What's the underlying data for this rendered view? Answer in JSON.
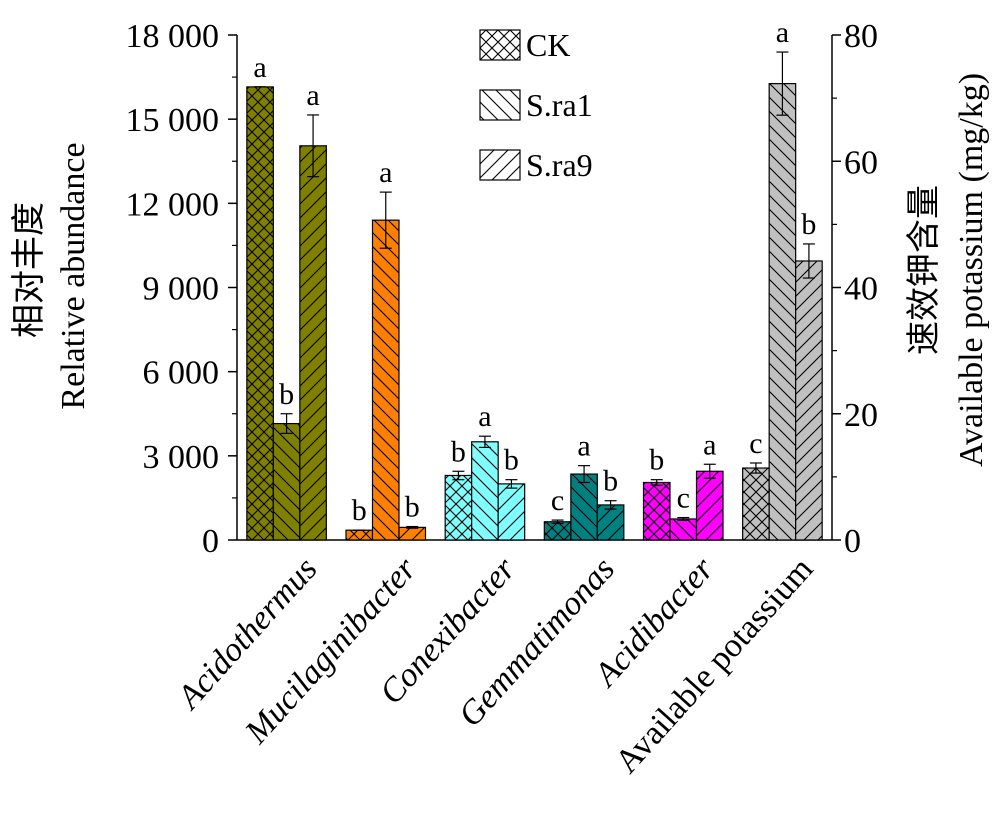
{
  "chart_data": {
    "type": "bar",
    "categories": [
      "Acidothermus",
      "Mucilaginibacter",
      "Conexibacter",
      "Gemmatimonas",
      "Acidibacter",
      "Available potassium"
    ],
    "category_italic": [
      true,
      true,
      true,
      true,
      true,
      false
    ],
    "category_axis": [
      "left",
      "left",
      "left",
      "left",
      "left",
      "right"
    ],
    "category_colors": [
      "#808000",
      "#ff8000",
      "#80ffff",
      "#008080",
      "#ff00ff",
      "#c0c0c0"
    ],
    "series": [
      {
        "name": "CK",
        "pattern": "crosshatch",
        "values": [
          16150,
          350,
          2300,
          650,
          2050,
          11.4
        ],
        "errors": [
          0,
          0,
          150,
          60,
          100,
          0.8
        ],
        "significance": [
          "a",
          "b",
          "b",
          "c",
          "b",
          "c"
        ]
      },
      {
        "name": "S.ra1",
        "pattern": "backslash",
        "values": [
          4150,
          11400,
          3500,
          2350,
          750,
          72.3
        ],
        "errors": [
          350,
          1000,
          200,
          300,
          50,
          5.0
        ],
        "significance": [
          "b",
          "a",
          "a",
          "a",
          "c",
          "a"
        ]
      },
      {
        "name": "S.ra9",
        "pattern": "slash",
        "values": [
          14050,
          450,
          2000,
          1250,
          2450,
          44.2
        ],
        "errors": [
          1100,
          30,
          150,
          150,
          250,
          2.7
        ],
        "significance": [
          "a",
          "b",
          "b",
          "b",
          "a",
          "b"
        ]
      }
    ],
    "left_axis": {
      "label_cn": "相对丰度",
      "label_en": "Relative abundance",
      "ylim": [
        0,
        18000
      ],
      "ticks": [
        0,
        3000,
        6000,
        9000,
        12000,
        15000,
        18000
      ],
      "tick_labels": [
        "0",
        "3 000",
        "6 000",
        "9 000",
        "12 000",
        "15 000",
        "18 000"
      ]
    },
    "right_axis": {
      "label_cn": "速效钾含量",
      "label_en": "Available potassium (mg/kg)",
      "ylim": [
        0,
        80
      ],
      "ticks": [
        0,
        20,
        40,
        60,
        80
      ],
      "tick_labels": [
        "0",
        "20",
        "40",
        "60",
        "80"
      ]
    },
    "legend": {
      "position": "top-center",
      "entries": [
        "CK",
        "S.ra1",
        "S.ra9"
      ]
    },
    "grid": false
  }
}
